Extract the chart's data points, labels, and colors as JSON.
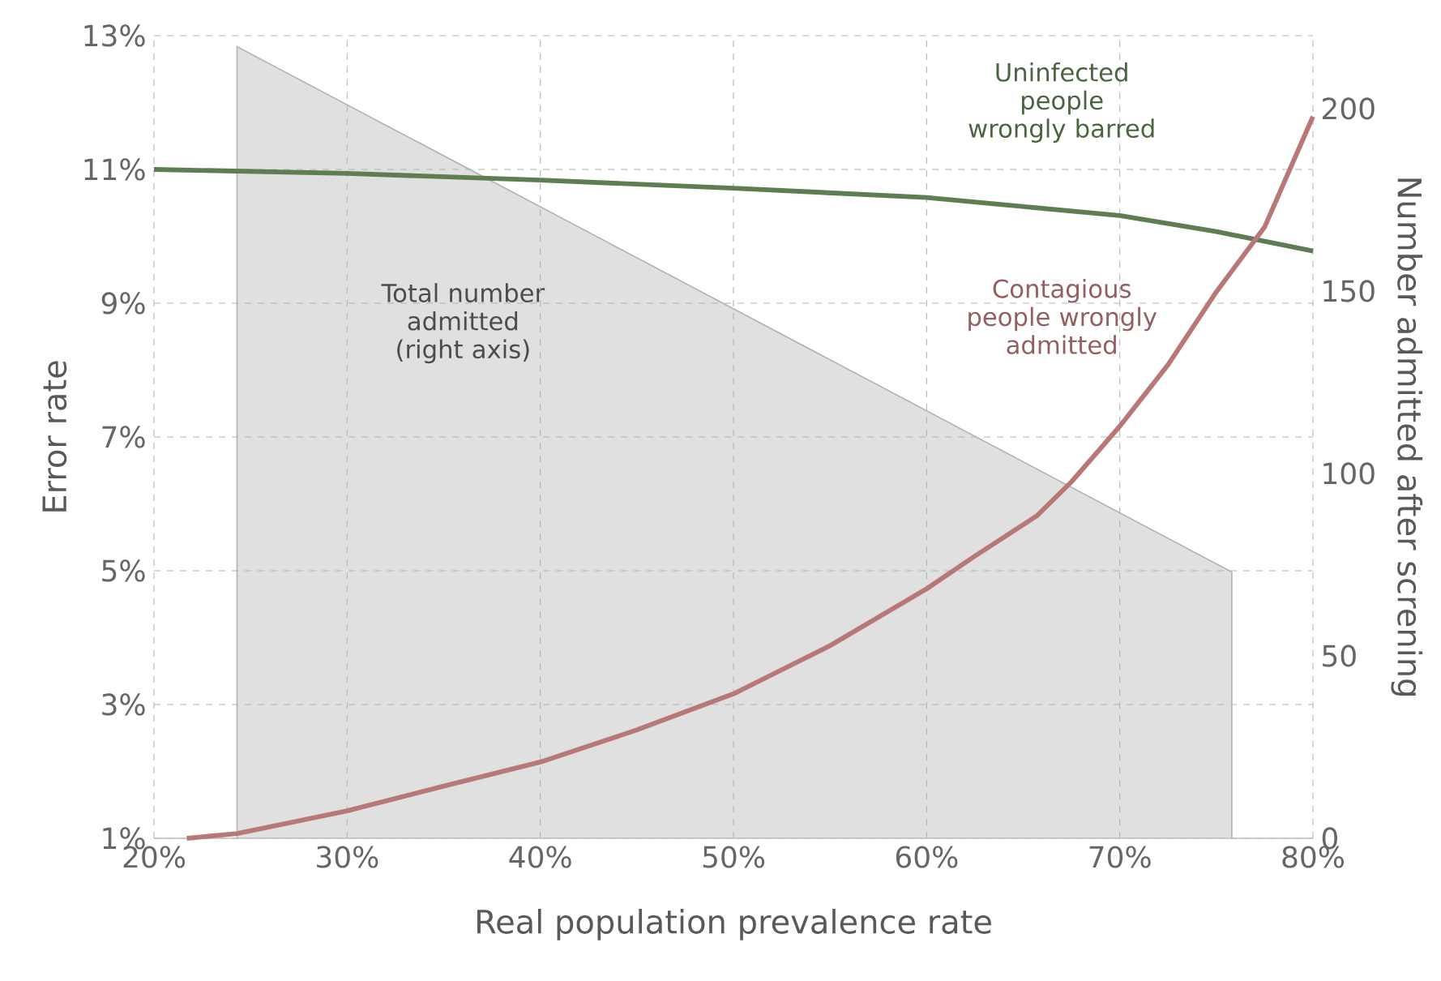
{
  "chart_data": {
    "type": "line",
    "xlabel": "Real population prevalence rate",
    "ylabel": "Error rate",
    "y2label": "Number admitted after screning",
    "xlim": [
      20,
      80
    ],
    "xticks": [
      {
        "value": 20,
        "label": "20%"
      },
      {
        "value": 30,
        "label": "30%"
      },
      {
        "value": 40,
        "label": "40%"
      },
      {
        "value": 50,
        "label": "50%"
      },
      {
        "value": 60,
        "label": "60%"
      },
      {
        "value": 70,
        "label": "70%"
      },
      {
        "value": 80,
        "label": "80%"
      }
    ],
    "ylim": [
      1,
      13
    ],
    "yticks": [
      {
        "value": 1,
        "label": "1%"
      },
      {
        "value": 3,
        "label": "3%"
      },
      {
        "value": 5,
        "label": "5%"
      },
      {
        "value": 7,
        "label": "7%"
      },
      {
        "value": 9,
        "label": "9%"
      },
      {
        "value": 11,
        "label": "11%"
      },
      {
        "value": 13,
        "label": "13%"
      }
    ],
    "y2lim": [
      0,
      220
    ],
    "y2ticks": [
      0,
      50,
      100,
      150,
      200
    ],
    "grid": true,
    "series": [
      {
        "name": "Total number admitted (right axis)",
        "type": "area",
        "axis": "y2",
        "color": "#e0e0e0",
        "x": [
          24.3,
          24.3,
          75.8,
          75.8
        ],
        "values": [
          0,
          217,
          73,
          0
        ]
      },
      {
        "name": "Uninfected people wrongly barred",
        "color": "#5e7d52",
        "x": [
          20,
          30,
          40,
          50,
          60,
          70,
          75,
          80
        ],
        "values": [
          11.0,
          10.94,
          10.84,
          10.72,
          10.58,
          10.31,
          10.07,
          9.78
        ]
      },
      {
        "name": "Contagious people wrongly admitted",
        "color": "#b87878",
        "x": [
          21.7,
          24.3,
          30,
          35,
          40,
          45,
          50,
          55,
          60,
          62.5,
          65.7,
          67.5,
          70,
          72.5,
          75,
          77.5,
          80
        ],
        "values": [
          1.0,
          1.07,
          1.41,
          1.78,
          2.14,
          2.62,
          3.16,
          3.88,
          4.73,
          5.22,
          5.82,
          6.33,
          7.16,
          8.08,
          9.17,
          10.14,
          11.79
        ]
      }
    ]
  }
}
